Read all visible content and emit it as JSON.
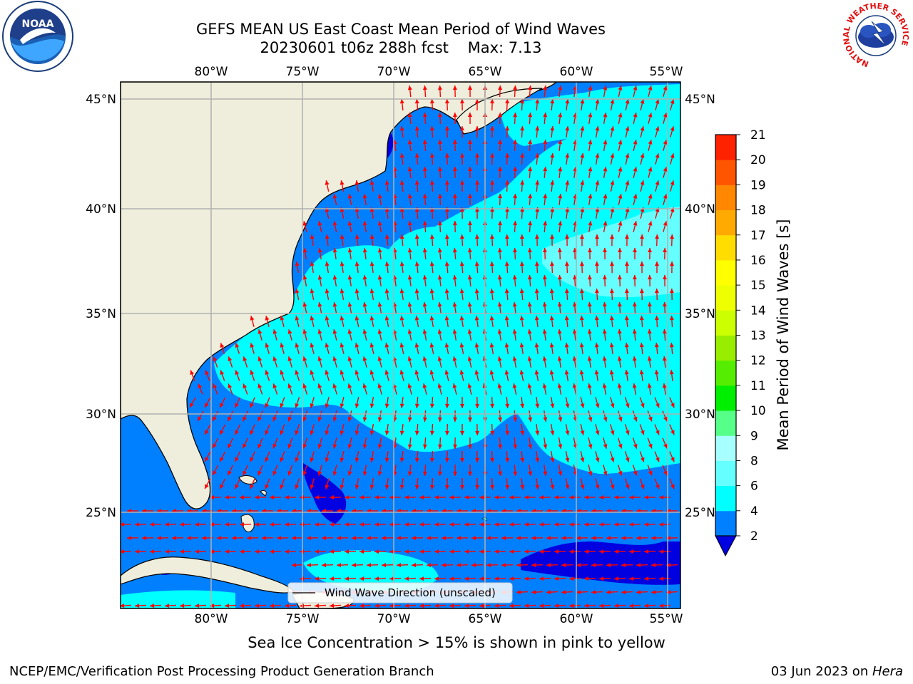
{
  "title": {
    "line1": "GEFS MEAN US East Coast Mean Period of Wind Waves",
    "line2": "20230601 t06z 288h fcst    Max: 7.13"
  },
  "logos": {
    "left": {
      "text": "NOAA"
    },
    "right": {
      "ring_text": "NATIONAL WEATHER SERVICE"
    }
  },
  "map": {
    "lon_ticks": [
      "80°W",
      "75°W",
      "70°W",
      "65°W",
      "60°W",
      "55°W"
    ],
    "lat_ticks": [
      "45°N",
      "40°N",
      "35°N",
      "30°N",
      "25°N"
    ],
    "legend": "Wind Wave Direction (unscaled)",
    "colors": {
      "land": "#efeedc",
      "band_2_4": "#0080ff",
      "band_4_6": "#00ffff",
      "band_6_8": "#66ffff",
      "below_2": "#0000e0",
      "arrow": "#ff0000",
      "grid": "#b0b0b0"
    }
  },
  "colorbar": {
    "label": "Mean Period of Wind Waves [s]",
    "ticks": [
      "2",
      "4",
      "6",
      "8",
      "9",
      "10",
      "11",
      "12",
      "13",
      "14",
      "15",
      "16",
      "17",
      "18",
      "19",
      "20",
      "21"
    ],
    "colors": [
      "#0080ff",
      "#00ffff",
      "#66ffff",
      "#a8ffff",
      "#55ff88",
      "#00ee00",
      "#55ee00",
      "#99ee00",
      "#ccff00",
      "#eeff00",
      "#ffff00",
      "#ffdd00",
      "#ffaa00",
      "#ff8800",
      "#ff5500",
      "#ff2200",
      "#ff0000"
    ],
    "extend_color": "#0000e0"
  },
  "subtitle": "Sea Ice Concentration > 15% is shown in pink to yellow",
  "footer": {
    "left": "NCEP/EMC/Verification Post Processing Product Generation Branch",
    "right_date": "03 Jun 2023 on ",
    "right_host": "Hera"
  }
}
